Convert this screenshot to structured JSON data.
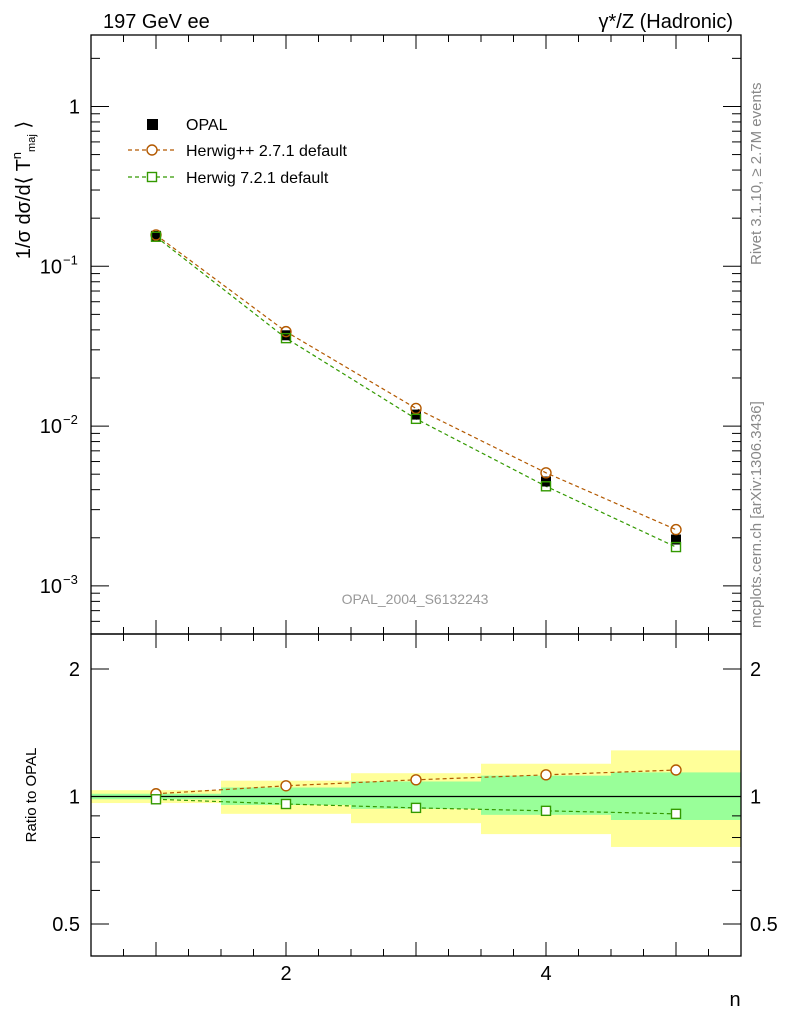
{
  "header": {
    "energy": "197 GeV ee",
    "process": "γ*/Z (Hadronic)"
  },
  "side_labels": {
    "rivet": "Rivet 3.1.10, ≥ 2.7M events",
    "source": "mcplots.cern.ch [arXiv:1306.3436]"
  },
  "watermark": "OPAL_2004_S6132243",
  "chart_data": [
    {
      "panel": "main",
      "type": "scatter",
      "ylabel": "1/σ dσ/d⟨ T^n_maj ⟩",
      "xlabel": "",
      "xlim": [
        0.5,
        5.5
      ],
      "ylim": [
        0.0005,
        2.8
      ],
      "yscale": "log",
      "yticks": [
        {
          "value": 1,
          "label": "1"
        },
        {
          "value": 0.1,
          "label": "10",
          "exp": "−1"
        },
        {
          "value": 0.01,
          "label": "10",
          "exp": "−2"
        },
        {
          "value": 0.001,
          "label": "10",
          "exp": "−3"
        }
      ],
      "x": [
        1,
        2,
        3,
        4,
        5
      ],
      "legend_position": "top-left",
      "series": [
        {
          "name": "OPAL",
          "style": "data",
          "color": "#000000",
          "values": [
            0.155,
            0.037,
            0.0118,
            0.0045,
            0.00195
          ]
        },
        {
          "name": "Herwig++ 2.7.1 default",
          "style": "circle-dashed",
          "color": "#b35900",
          "values": [
            0.157,
            0.039,
            0.0129,
            0.0051,
            0.00225
          ]
        },
        {
          "name": "Herwig 7.2.1 default",
          "style": "square-dashed",
          "color": "#339900",
          "values": [
            0.153,
            0.0355,
            0.0111,
            0.0042,
            0.00175
          ]
        }
      ]
    },
    {
      "panel": "ratio",
      "type": "scatter",
      "ylabel": "Ratio to OPAL",
      "xlabel": "n",
      "xlim": [
        0.5,
        5.5
      ],
      "ylim": [
        0.42,
        2.42
      ],
      "yscale": "log",
      "yticks": [
        {
          "value": 2,
          "label": "2"
        },
        {
          "value": 1,
          "label": "1"
        },
        {
          "value": 0.5,
          "label": "0.5"
        }
      ],
      "xticks": [
        {
          "value": 2,
          "label": "2"
        },
        {
          "value": 4,
          "label": "4"
        }
      ],
      "x": [
        1,
        2,
        3,
        4,
        5
      ],
      "bands": {
        "stat": {
          "color": "#99ff99",
          "low": [
            0.985,
            0.955,
            0.935,
            0.905,
            0.88
          ],
          "high": [
            1.015,
            1.05,
            1.085,
            1.12,
            1.14
          ]
        },
        "total": {
          "color": "#ffff99",
          "low": [
            0.965,
            0.91,
            0.865,
            0.815,
            0.76
          ],
          "high": [
            1.035,
            1.09,
            1.135,
            1.195,
            1.285
          ]
        }
      },
      "series": [
        {
          "name": "Herwig++ 2.7.1 default",
          "color": "#b35900",
          "values": [
            1.015,
            1.06,
            1.095,
            1.125,
            1.155
          ]
        },
        {
          "name": "Herwig 7.2.1 default",
          "color": "#339900",
          "values": [
            0.985,
            0.96,
            0.94,
            0.925,
            0.91
          ]
        }
      ]
    }
  ]
}
